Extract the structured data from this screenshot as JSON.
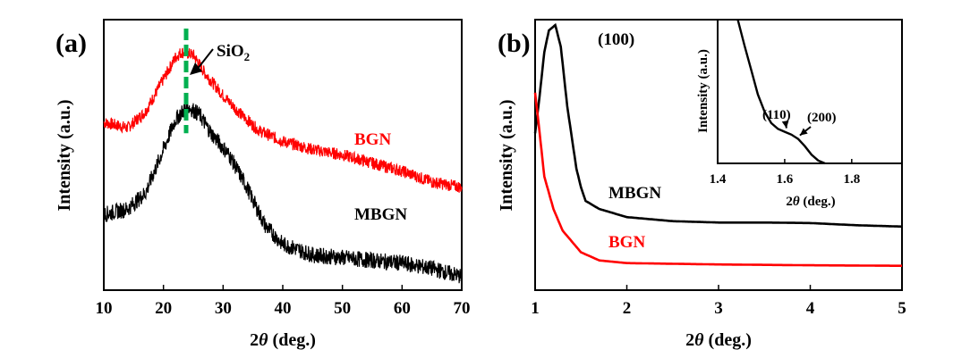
{
  "chart_data": [
    {
      "panel": "(a)",
      "type": "line",
      "xlabel_prefix": "2",
      "xlabel_var": "θ",
      "xlabel_suffix": " (deg.)",
      "ylabel": "Intensity (a.u.)",
      "xlim": [
        10,
        70
      ],
      "xticks": [
        10,
        20,
        30,
        40,
        50,
        60,
        70
      ],
      "ylim": [
        0,
        1
      ],
      "grid": false,
      "series": [
        {
          "name": "BGN",
          "color": "#ff0000",
          "points": [
            [
              10,
              0.62
            ],
            [
              14,
              0.6
            ],
            [
              17,
              0.66
            ],
            [
              20,
              0.78
            ],
            [
              22,
              0.86
            ],
            [
              23,
              0.88
            ],
            [
              25,
              0.87
            ],
            [
              27,
              0.8
            ],
            [
              30,
              0.72
            ],
            [
              33,
              0.65
            ],
            [
              36,
              0.59
            ],
            [
              40,
              0.55
            ],
            [
              45,
              0.52
            ],
            [
              50,
              0.5
            ],
            [
              55,
              0.47
            ],
            [
              60,
              0.44
            ],
            [
              65,
              0.4
            ],
            [
              70,
              0.38
            ]
          ]
        },
        {
          "name": "MBGN",
          "color": "#000000",
          "points": [
            [
              10,
              0.28
            ],
            [
              14,
              0.3
            ],
            [
              17,
              0.36
            ],
            [
              20,
              0.52
            ],
            [
              22,
              0.63
            ],
            [
              24,
              0.68
            ],
            [
              26,
              0.65
            ],
            [
              28,
              0.58
            ],
            [
              31,
              0.5
            ],
            [
              34,
              0.38
            ],
            [
              37,
              0.24
            ],
            [
              40,
              0.17
            ],
            [
              45,
              0.13
            ],
            [
              50,
              0.12
            ],
            [
              55,
              0.11
            ],
            [
              60,
              0.1
            ],
            [
              65,
              0.08
            ],
            [
              70,
              0.05
            ]
          ]
        }
      ],
      "annotations": {
        "sio2_base": "SiO",
        "sio2_sub": "2",
        "sio2_position": 23.8,
        "sio2_line_color": "#00b050"
      }
    },
    {
      "panel": "(b)",
      "type": "line",
      "xlabel_prefix": "2",
      "xlabel_var": "θ",
      "xlabel_suffix": " (deg.)",
      "ylabel": "Intensity (a.u.)",
      "xlim": [
        1,
        5
      ],
      "xticks": [
        1,
        2,
        3,
        4,
        5
      ],
      "ylim": [
        0,
        1
      ],
      "grid": false,
      "series": [
        {
          "name": "MBGN",
          "color": "#000000",
          "points": [
            [
              1.0,
              0.58
            ],
            [
              1.05,
              0.72
            ],
            [
              1.1,
              0.88
            ],
            [
              1.15,
              0.96
            ],
            [
              1.22,
              0.98
            ],
            [
              1.28,
              0.9
            ],
            [
              1.35,
              0.68
            ],
            [
              1.45,
              0.45
            ],
            [
              1.5,
              0.38
            ],
            [
              1.55,
              0.33
            ],
            [
              1.7,
              0.3
            ],
            [
              2.0,
              0.27
            ],
            [
              2.5,
              0.255
            ],
            [
              3.0,
              0.25
            ],
            [
              3.5,
              0.25
            ],
            [
              4.0,
              0.248
            ],
            [
              4.5,
              0.24
            ],
            [
              5.0,
              0.235
            ]
          ]
        },
        {
          "name": "BGN",
          "color": "#ff0000",
          "points": [
            [
              1.0,
              0.73
            ],
            [
              1.05,
              0.58
            ],
            [
              1.1,
              0.42
            ],
            [
              1.2,
              0.3
            ],
            [
              1.3,
              0.22
            ],
            [
              1.5,
              0.14
            ],
            [
              1.7,
              0.11
            ],
            [
              2.0,
              0.1
            ],
            [
              3.0,
              0.095
            ],
            [
              4.0,
              0.092
            ],
            [
              5.0,
              0.09
            ]
          ]
        }
      ],
      "annotations": {
        "peak_100": "(100)",
        "peak_100_x": 1.22
      },
      "inset": {
        "xlabel_prefix": "2",
        "xlabel_var": "θ",
        "xlabel_suffix": " (deg.)",
        "ylabel": "Intensity (a.u.)",
        "xlim": [
          1.4,
          1.95
        ],
        "xticks": [
          1.4,
          1.6,
          1.8
        ],
        "ylim": [
          0,
          1
        ],
        "series": [
          {
            "name": "MBGN",
            "color": "#000000",
            "points": [
              [
                1.46,
                1.0
              ],
              [
                1.48,
                0.82
              ],
              [
                1.5,
                0.65
              ],
              [
                1.52,
                0.48
              ],
              [
                1.54,
                0.36
              ],
              [
                1.56,
                0.28
              ],
              [
                1.58,
                0.24
              ],
              [
                1.6,
                0.22
              ],
              [
                1.62,
                0.2
              ],
              [
                1.64,
                0.17
              ],
              [
                1.66,
                0.12
              ],
              [
                1.68,
                0.06
              ],
              [
                1.7,
                0.02
              ],
              [
                1.72,
                0.0
              ]
            ]
          }
        ],
        "annotations": {
          "peak_110": "(110)",
          "peak_110_x": 1.6,
          "peak_200": "(200)",
          "peak_200_x": 1.64
        }
      }
    }
  ]
}
